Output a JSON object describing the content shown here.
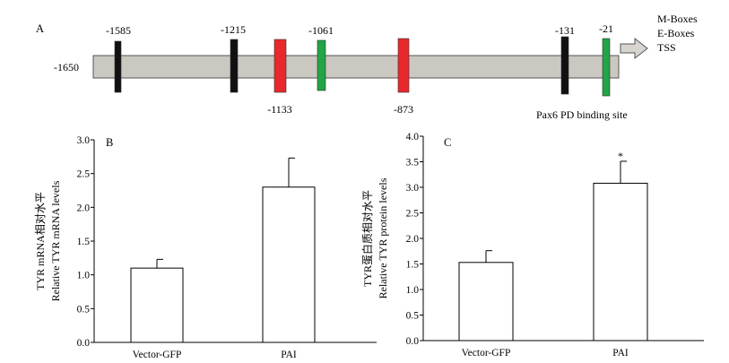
{
  "panels": {
    "A": "A",
    "B": "B",
    "C": "C"
  },
  "promoter_map": {
    "start_label": "-1650",
    "legend": [
      "M-Boxes",
      "E-Boxes",
      "TSS"
    ],
    "annotation": "Pax6 PD binding site",
    "colors": {
      "bar": "#cbc7c1",
      "m_box": "#111111",
      "e_box": "#e8282c",
      "pax6": "#22a447",
      "arrow": "#d8d5d0"
    },
    "sites": [
      {
        "label": "-1585",
        "type": "m_box",
        "label_pos": "above"
      },
      {
        "label": "-1215",
        "type": "m_box",
        "label_pos": "above"
      },
      {
        "label": "-1133",
        "type": "e_box",
        "label_pos": "below"
      },
      {
        "label": "-1061",
        "type": "pax6",
        "label_pos": "above"
      },
      {
        "label": "-873",
        "type": "e_box",
        "label_pos": "below"
      },
      {
        "label": "-131",
        "type": "m_box",
        "label_pos": "above"
      },
      {
        "label": "-21",
        "type": "pax6",
        "label_pos": "above"
      }
    ]
  },
  "chart_data": [
    {
      "type": "bar",
      "panel": "B",
      "categories": [
        "Vector-GFP",
        "PAI"
      ],
      "values": [
        1.1,
        2.3
      ],
      "errors": [
        0.13,
        0.43
      ],
      "ylabel": [
        "TYR mRNA相对水平",
        "Relative TYR mRNA levels"
      ],
      "ylim": [
        0,
        3.0
      ],
      "yticks": [
        "0.0",
        "0.5",
        "1.0",
        "1.5",
        "2.0",
        "2.5",
        "3.0"
      ],
      "grid": false,
      "annotations": [
        "",
        ""
      ]
    },
    {
      "type": "bar",
      "panel": "C",
      "categories": [
        "Vector-GFP",
        "PAI"
      ],
      "values": [
        1.53,
        3.08
      ],
      "errors": [
        0.23,
        0.43
      ],
      "ylabel": [
        "TYR蛋白质相对水平",
        "Relative TYR protein levels"
      ],
      "ylim": [
        0,
        4.0
      ],
      "yticks": [
        "0.0",
        "0.5",
        "1.0",
        "1.5",
        "2.0",
        "2.5",
        "3.0",
        "3.5",
        "4.0"
      ],
      "grid": false,
      "annotations": [
        "",
        "*"
      ]
    }
  ]
}
